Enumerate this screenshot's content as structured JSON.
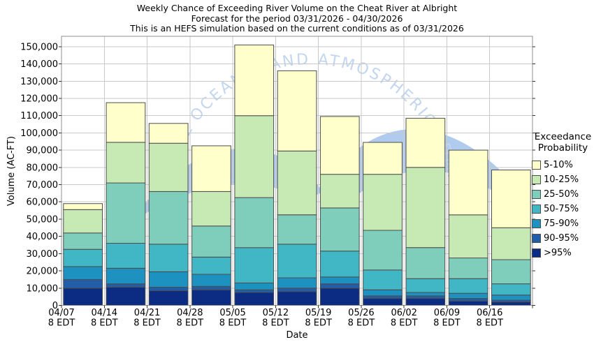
{
  "title": {
    "line1": "Weekly Chance of Exceeding River Volume on the Cheat River at Albright",
    "line2": "Forecast for the period 03/31/2026 - 04/30/2026",
    "line3": "This is an HEFS simulation based on the current conditions as of 03/31/2026"
  },
  "watermark": {
    "text": "NATIONAL OCEANIC AND ATMOSPHERIC ADMINISTRATION",
    "text_color": "#c3d6f0",
    "bird_color": "#b0cbee"
  },
  "chart_data": {
    "type": "bar",
    "stacked": true,
    "title": "Weekly Chance of Exceeding River Volume on the Cheat River at Albright",
    "xlabel": "Date",
    "ylabel": "Volume (AC-FT)",
    "ylim": [
      0,
      156000
    ],
    "ytick_interval": 10000,
    "ytick_labels": [
      "0",
      "10,000",
      "20,000",
      "30,000",
      "40,000",
      "50,000",
      "60,000",
      "70,000",
      "80,000",
      "90,000",
      "100,000",
      "110,000",
      "120,000",
      "130,000",
      "140,000",
      "150,000"
    ],
    "grid": true,
    "categories": [
      "04/07",
      "04/14",
      "04/21",
      "04/28",
      "05/05",
      "05/12",
      "05/19",
      "05/26",
      "06/02",
      "06/09",
      "06/16"
    ],
    "category_sublabel": "8 EDT",
    "legend_position": "right",
    "legend_title1": "Exceedance",
    "legend_title2": "Probability",
    "totals": [
      59000,
      117500,
      105500,
      92500,
      151000,
      136000,
      109500,
      94500,
      108500,
      90000,
      78500
    ],
    "series": [
      {
        "name": ">95%",
        "color": "#0c2c84",
        "values": [
          10000,
          10500,
          8500,
          9000,
          7500,
          8000,
          10000,
          4000,
          4000,
          2500,
          2000
        ]
      },
      {
        "name": "90-95%",
        "color": "#225ea8",
        "values": [
          5000,
          2000,
          2000,
          2000,
          1500,
          2000,
          2500,
          1500,
          1500,
          1500,
          1000
        ]
      },
      {
        "name": "75-90%",
        "color": "#1d91c0",
        "values": [
          7500,
          9000,
          9000,
          7000,
          4000,
          6000,
          4000,
          3500,
          2000,
          3000,
          3000
        ]
      },
      {
        "name": "50-75%",
        "color": "#41b6c4",
        "values": [
          10000,
          14500,
          16000,
          10000,
          20500,
          19500,
          15000,
          11500,
          8000,
          8500,
          6500
        ]
      },
      {
        "name": "25-50%",
        "color": "#7fcdbb",
        "values": [
          9500,
          35000,
          30500,
          18000,
          29000,
          17000,
          25000,
          23000,
          18000,
          12000,
          14000
        ]
      },
      {
        "name": "10-25%",
        "color": "#c7e9b4",
        "values": [
          13500,
          23500,
          28000,
          20000,
          47500,
          37000,
          19500,
          32500,
          46500,
          25000,
          18500
        ]
      },
      {
        "name": "5-10%",
        "color": "#ffffcc",
        "values": [
          3500,
          23000,
          11500,
          26500,
          41000,
          46500,
          33500,
          18500,
          28500,
          37500,
          33500
        ]
      }
    ],
    "colors": {
      "grid": "#c9c9c9",
      "plot_border": "#8f8f8f",
      "bar_border": "#4d4d4d",
      "tick": "#333333"
    }
  }
}
